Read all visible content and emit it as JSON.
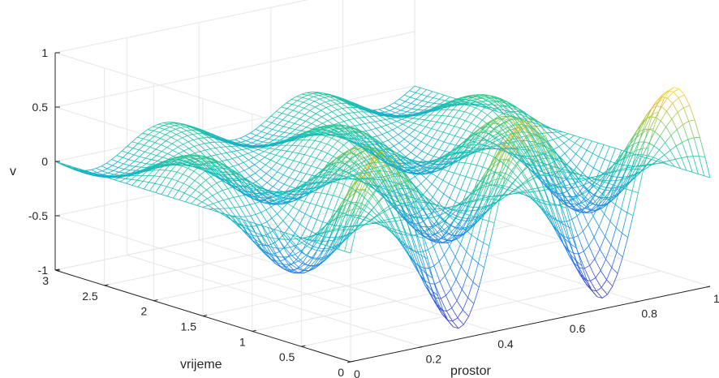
{
  "chart_data": {
    "type": "surface",
    "style": "mesh",
    "colormap": "parula",
    "xlabel": "prostor",
    "ylabel": "vrijeme",
    "zlabel": "v",
    "xlim": [
      0,
      1
    ],
    "ylim": [
      0,
      3
    ],
    "zlim": [
      -1,
      1
    ],
    "xticks": [
      "0",
      "0.2",
      "0.4",
      "0.6",
      "0.8",
      "1"
    ],
    "yticks": [
      "0",
      "0.5",
      "1",
      "1.5",
      "2",
      "2.5",
      "3"
    ],
    "zticks": [
      "-1",
      "-0.5",
      "0",
      "0.5",
      "1"
    ],
    "grid": true,
    "surface": {
      "function": "v(x,t) = 0.9*cos(3.2*t)*sin(5*pi*x)*exp(-0.6*t)",
      "x_range": [
        0,
        1
      ],
      "t_range": [
        0,
        3
      ],
      "peak_value_at_t0": 0.9
    }
  }
}
